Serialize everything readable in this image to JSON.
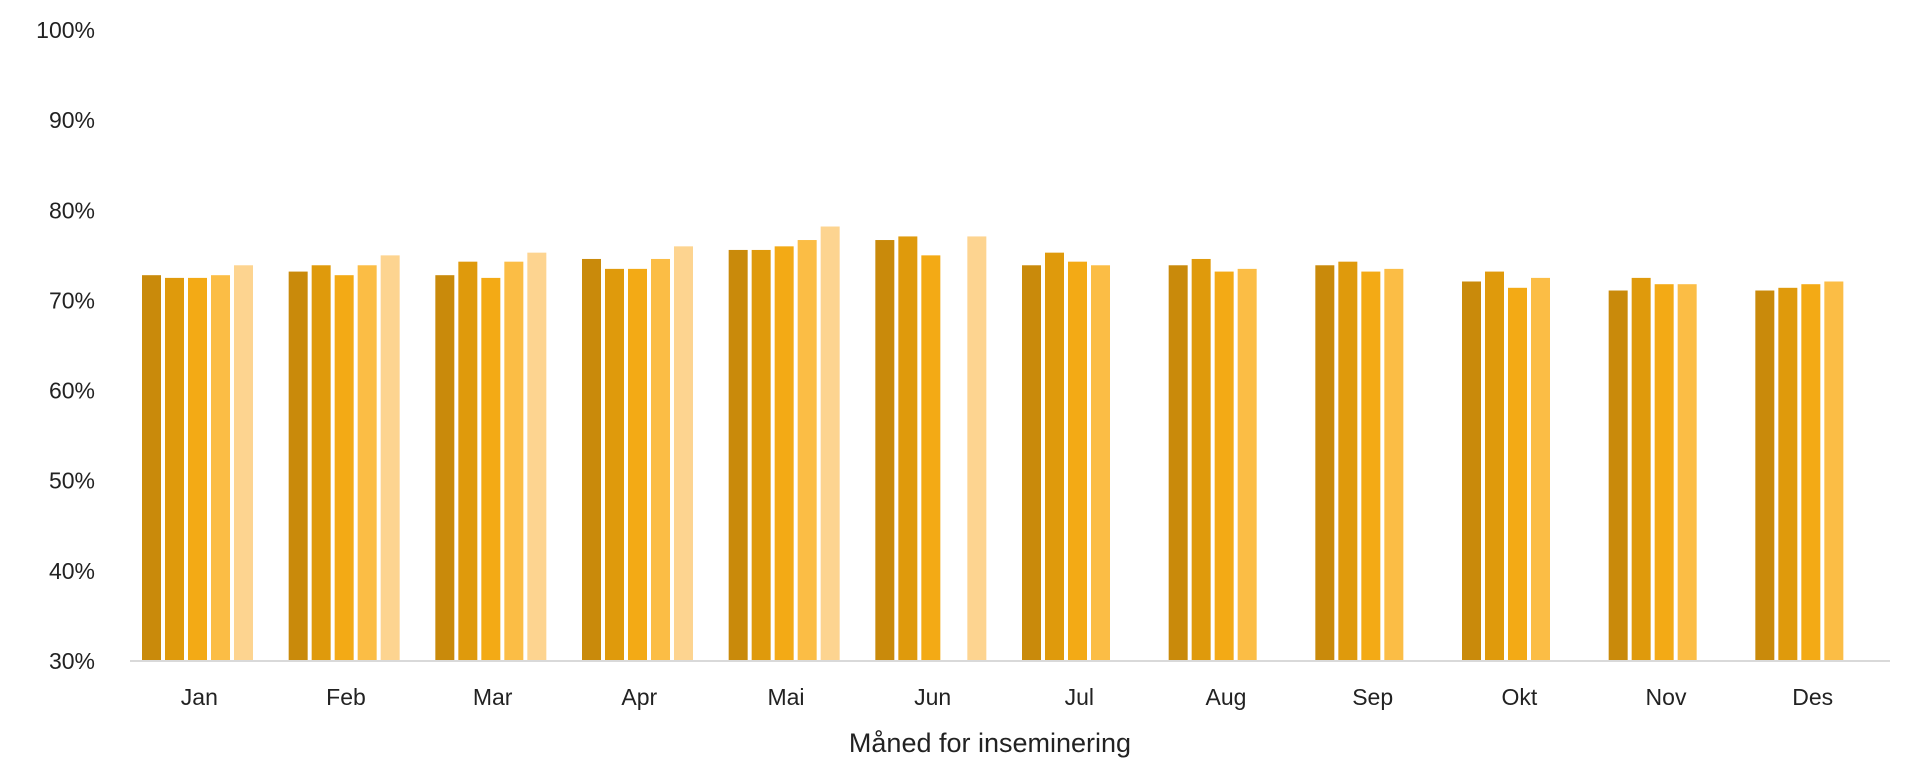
{
  "chart_data": {
    "type": "bar",
    "title": "",
    "xlabel": "Måned for inseminering",
    "ylabel": "",
    "ylim": [
      0.3,
      1.0
    ],
    "y_ticks": [
      "30%",
      "40%",
      "50%",
      "60%",
      "70%",
      "80%",
      "90%",
      "100%"
    ],
    "y_tick_values": [
      0.3,
      0.4,
      0.5,
      0.6,
      0.7,
      0.8,
      0.9,
      1.0
    ],
    "grid": false,
    "legend": "none",
    "categories": [
      "Jan",
      "Feb",
      "Mar",
      "Apr",
      "Mai",
      "Jun",
      "Jul",
      "Aug",
      "Sep",
      "Okt",
      "Nov",
      "Des"
    ],
    "series": [
      {
        "color": "#C98A0B",
        "values": [
          0.728,
          0.732,
          0.728,
          0.746,
          0.756,
          0.767,
          0.739,
          0.739,
          0.739,
          0.721,
          0.711,
          0.711
        ]
      },
      {
        "color": "#DF9A0C",
        "values": [
          0.725,
          0.739,
          0.743,
          0.735,
          0.756,
          0.771,
          0.753,
          0.746,
          0.743,
          0.732,
          0.725,
          0.714
        ]
      },
      {
        "color": "#F3AA15",
        "values": [
          0.725,
          0.728,
          0.725,
          0.735,
          0.76,
          0.75,
          0.743,
          0.732,
          0.732,
          0.714,
          0.718,
          0.718
        ]
      },
      {
        "color": "#FBBD45",
        "values": [
          0.728,
          0.739,
          0.743,
          0.746,
          0.767,
          null,
          0.739,
          0.735,
          0.735,
          0.725,
          0.718,
          0.721
        ]
      },
      {
        "color": "#FDD490",
        "values": [
          0.739,
          0.75,
          0.753,
          0.76,
          0.782,
          0.771,
          null,
          null,
          null,
          null,
          null,
          null
        ]
      }
    ]
  }
}
